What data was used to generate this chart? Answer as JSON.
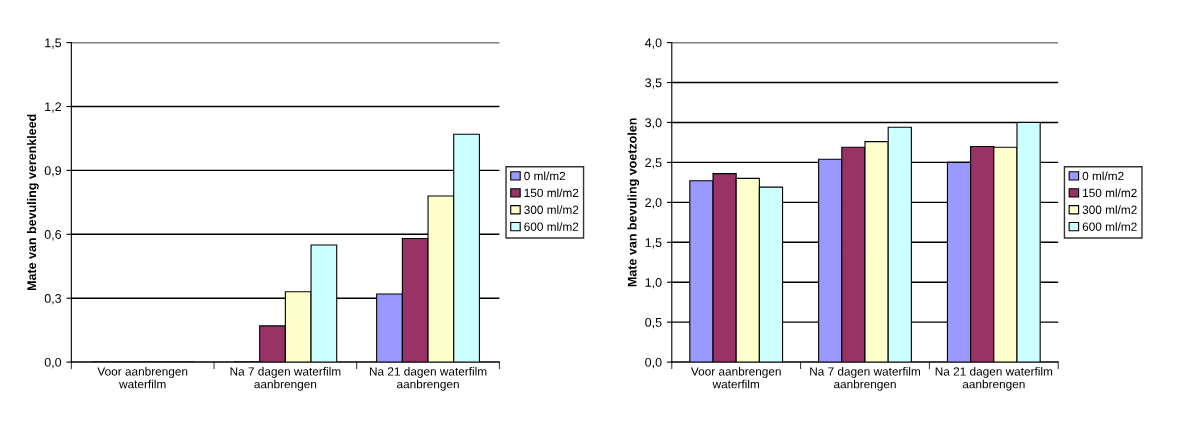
{
  "chart_data": [
    {
      "type": "bar",
      "ylabel": "Mate van bevuling verenkleed",
      "categories": [
        "Voor aanbrengen\nwaterfilm",
        "Na 7 dagen waterfilm\naanbrengen",
        "Na 21 dagen waterfilm\naanbrengen"
      ],
      "ylim": [
        0,
        1.5
      ],
      "yticks": [
        {
          "value": 0,
          "label": "0,0"
        },
        {
          "value": 0.3,
          "label": "0,3"
        },
        {
          "value": 0.6,
          "label": "0,6"
        },
        {
          "value": 0.9,
          "label": "0,9"
        },
        {
          "value": 1.2,
          "label": "1,2"
        },
        {
          "value": 1.5,
          "label": "1,5"
        }
      ],
      "grid": "y",
      "legend": "right",
      "series": [
        {
          "name": "0 ml/m2",
          "color": "#9999ff",
          "values": [
            0,
            0,
            0.32
          ]
        },
        {
          "name": "150 ml/m2",
          "color": "#993366",
          "values": [
            0,
            0.17,
            0.58
          ]
        },
        {
          "name": "300 ml/m2",
          "color": "#ffffcc",
          "values": [
            0,
            0.33,
            0.78
          ]
        },
        {
          "name": "600 ml/m2",
          "color": "#ccffff",
          "values": [
            0,
            0.55,
            1.07
          ]
        }
      ]
    },
    {
      "type": "bar",
      "ylabel": "Mate van bevuling voetzolen",
      "categories": [
        "Voor aanbrengen\nwaterfilm",
        "Na 7 dagen waterfilm\naanbrengen",
        "Na 21 dagen waterfilm\naanbrengen"
      ],
      "ylim": [
        0,
        4
      ],
      "yticks": [
        {
          "value": 0,
          "label": "0,0"
        },
        {
          "value": 0.5,
          "label": "0,5"
        },
        {
          "value": 1,
          "label": "1,0"
        },
        {
          "value": 1.5,
          "label": "1,5"
        },
        {
          "value": 2,
          "label": "2,0"
        },
        {
          "value": 2.5,
          "label": "2,5"
        },
        {
          "value": 3,
          "label": "3,0"
        },
        {
          "value": 3.5,
          "label": "3,5"
        },
        {
          "value": 4,
          "label": "4,0"
        }
      ],
      "grid": "y",
      "legend": "right",
      "series": [
        {
          "name": "0 ml/m2",
          "color": "#9999ff",
          "values": [
            2.27,
            2.54,
            2.5
          ]
        },
        {
          "name": "150 ml/m2",
          "color": "#993366",
          "values": [
            2.36,
            2.69,
            2.7
          ]
        },
        {
          "name": "300 ml/m2",
          "color": "#ffffcc",
          "values": [
            2.3,
            2.76,
            2.69
          ]
        },
        {
          "name": "600 ml/m2",
          "color": "#ccffff",
          "values": [
            2.19,
            2.94,
            3.0
          ]
        }
      ]
    }
  ]
}
